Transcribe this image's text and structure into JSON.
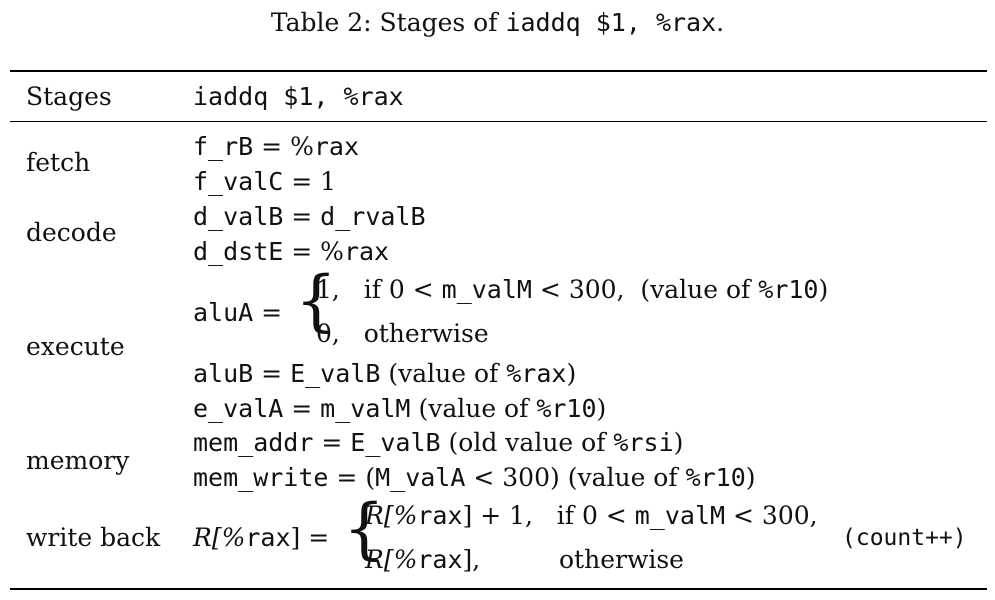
{
  "caption": {
    "prefix": "Table 2: Stages of ",
    "code": "iaddq $1, %rax",
    "suffix": "."
  },
  "header": {
    "stages_label": "Stages",
    "instr_label": "iaddq $1, %rax"
  },
  "stages": {
    "fetch": "fetch",
    "decode": "decode",
    "execute": "execute",
    "memory": "memory",
    "write_back": "write back"
  },
  "fetch": {
    "l1_var": "f_rB",
    "eq": "=",
    "l1_pct": "%",
    "l1_val": "rax",
    "l2_var": "f_valC",
    "l2_val": "1"
  },
  "decode": {
    "l1_var": "d_valB",
    "l1_val": "d_rvalB",
    "l2_var": "d_dstE",
    "l2_pct": "%",
    "l2_val": "rax"
  },
  "execute": {
    "aluA_var": "aluA",
    "case1_val": "1,",
    "case1_if": "if 0 <",
    "case1_var": "m_valM",
    "case1_lt": "< 300,",
    "case1_note_pre": "(value of ",
    "case1_note_code": "%r10",
    "case1_note_post": ")",
    "case2_val": "0,",
    "case2_cond": "otherwise",
    "aluB_var": "aluB",
    "aluB_val": "E_valB",
    "aluB_note_pre": "(value of ",
    "aluB_note_code": "%rax",
    "aluB_note_post": ")",
    "evalA_var": "e_valA",
    "evalA_val": "m_valM",
    "evalA_note_pre": "(value of ",
    "evalA_note_code": "%r10",
    "evalA_note_post": ")"
  },
  "memory": {
    "addr_var": "mem_addr",
    "addr_val": "E_valB",
    "addr_note_pre": "(old value of ",
    "addr_note_code": "%rsi",
    "addr_note_post": ")",
    "write_var": "mem_write",
    "write_open": "(",
    "write_val": "M_valA",
    "write_lt": "< 300)",
    "write_note_pre": "(value of ",
    "write_note_code": "%r10",
    "write_note_post": ")"
  },
  "writeback": {
    "lhs_pre": "R[%",
    "lhs_code": "rax",
    "lhs_post": "]",
    "c1_pre": "R[%",
    "c1_code": "rax",
    "c1_post": "] + 1,",
    "c1_if": "if 0 <",
    "c1_var": "m_valM",
    "c1_lt": "< 300,",
    "c2_pre": "R[%",
    "c2_code": "rax",
    "c2_post": "],",
    "c2_cond": "otherwise",
    "count": "(count++)"
  }
}
